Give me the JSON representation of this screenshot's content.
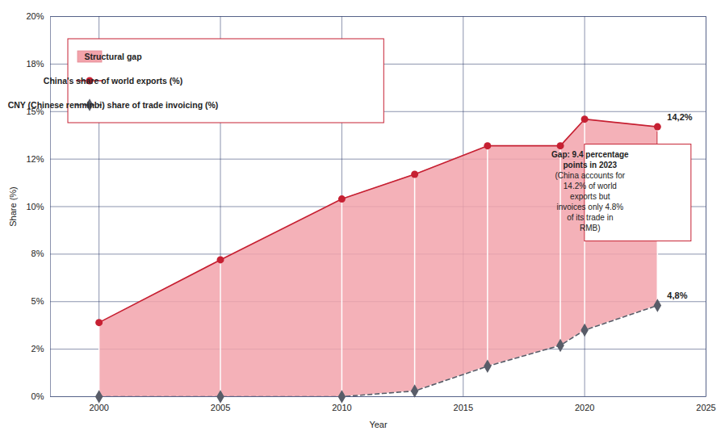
{
  "chart_data": {
    "type": "line",
    "x": [
      2000,
      2005,
      2010,
      2013,
      2016,
      2019,
      2020,
      2023
    ],
    "series": [
      {
        "name": "China's share of world exports (%)",
        "color": "#c62032",
        "marker": "circle",
        "line_style": "solid",
        "values": [
          3.9,
          7.2,
          10.4,
          11.7,
          13.2,
          13.2,
          14.6,
          14.2
        ],
        "value_labels": [
          null,
          null,
          null,
          null,
          null,
          null,
          null,
          "14,2%"
        ]
      },
      {
        "name": "CNY (Chinese renminbi) share of trade invoicing (%)",
        "color": "#585c68",
        "marker": "diamond",
        "line_style": "dashed",
        "values": [
          0,
          0,
          0,
          0.3,
          1.6,
          2.7,
          3.5,
          4.8
        ],
        "value_labels": [
          null,
          null,
          null,
          null,
          null,
          null,
          null,
          "4,8%"
        ]
      }
    ],
    "gap": {
      "name": "Structural gap",
      "color": "#f2a3ab",
      "type": "area"
    },
    "annotations": [
      {
        "title": "Gap: 9.4 percentage points in 2023",
        "text": "(China accounts for 14.2% of world exports but invoices only 4.8% of its trade in RMB)",
        "x": 2023
      }
    ],
    "xlabel": "Year",
    "ylabel": "Share (%)",
    "xlim": [
      1998,
      2025
    ],
    "xticks": [
      2000,
      2005,
      2010,
      2015,
      2020,
      2025
    ],
    "ylim": [
      0,
      20
    ],
    "yticks": [
      {
        "value": 0,
        "label": "0%"
      },
      {
        "value": 2.5,
        "label": "2%"
      },
      {
        "value": 5,
        "label": "5%"
      },
      {
        "value": 7.5,
        "label": "8%"
      },
      {
        "value": 10,
        "label": "10%"
      },
      {
        "value": 12.5,
        "label": "12%"
      },
      {
        "value": 15,
        "label": "15%"
      },
      {
        "value": 17.5,
        "label": "18%"
      },
      {
        "value": 20,
        "label": "20%"
      }
    ],
    "grid": true,
    "legend": "top-left"
  }
}
